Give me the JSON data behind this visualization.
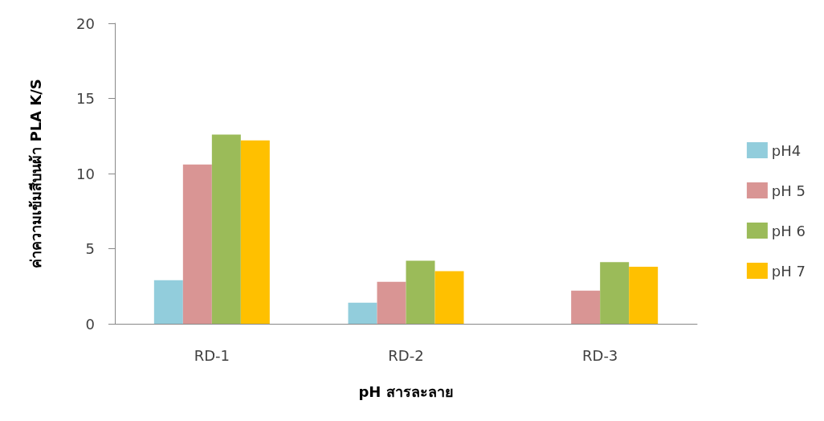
{
  "chart_data": {
    "type": "bar",
    "xlabel": "pH สารละลาย",
    "ylabel": "ค่าความเข้มสีบนผ้า PLA K/S",
    "categories": [
      "RD-1",
      "RD-2",
      "RD-3"
    ],
    "series": [
      {
        "name": "pH4",
        "color": "#92cddc",
        "values": [
          2.9,
          1.4,
          null
        ]
      },
      {
        "name": "pH 5",
        "color": "#d99594",
        "values": [
          10.6,
          2.8,
          2.2
        ]
      },
      {
        "name": "pH 6",
        "color": "#9bbb59",
        "values": [
          12.6,
          4.2,
          4.1
        ]
      },
      {
        "name": "pH 7",
        "color": "#ffc000",
        "values": [
          12.2,
          3.5,
          3.8
        ]
      }
    ],
    "ylim": [
      0,
      20
    ],
    "yticks": [
      0,
      5,
      10,
      15,
      20
    ],
    "grid": false,
    "legend": "right"
  }
}
